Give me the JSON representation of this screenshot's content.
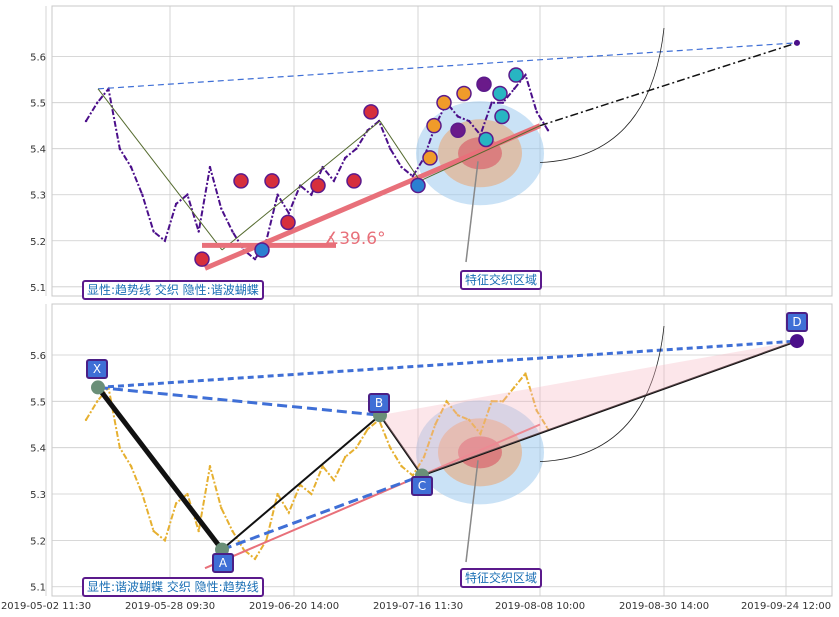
{
  "chart_data": [
    {
      "type": "line",
      "panel": "top",
      "yticks": [
        "5.1",
        "5.2",
        "5.3",
        "5.4",
        "5.5",
        "5.6"
      ],
      "ylim": [
        5.08,
        5.71
      ],
      "grid": true,
      "series": [
        {
          "values": [
            5.46,
            5.5,
            5.53,
            5.4,
            5.36,
            5.3,
            5.22,
            5.2,
            5.28,
            5.3,
            5.22,
            5.36,
            5.27,
            5.22,
            5.18,
            5.16,
            5.2,
            5.3,
            5.26,
            5.32,
            5.3,
            5.36,
            5.33,
            5.38,
            5.4,
            5.44,
            5.46,
            5.4,
            5.36,
            5.34,
            5.38,
            5.45,
            5.5,
            5.47,
            5.46,
            5.43,
            5.5,
            5.5,
            5.53,
            5.56,
            5.48,
            5.44
          ]
        }
      ],
      "annotations": {
        "angle_label": "∡39.6°",
        "zone_label": "特征交织区域",
        "badge": "显性:趋势线 交织 隐性:谐波蝴蝶"
      }
    },
    {
      "type": "line",
      "panel": "bottom",
      "yticks": [
        "5.1",
        "5.2",
        "5.3",
        "5.4",
        "5.5",
        "5.6"
      ],
      "ylim": [
        5.08,
        5.71
      ],
      "grid": true,
      "series": [
        {
          "values": [
            5.46,
            5.5,
            5.53,
            5.4,
            5.36,
            5.3,
            5.22,
            5.2,
            5.28,
            5.3,
            5.22,
            5.36,
            5.27,
            5.22,
            5.18,
            5.16,
            5.2,
            5.3,
            5.26,
            5.32,
            5.3,
            5.36,
            5.33,
            5.38,
            5.4,
            5.44,
            5.46,
            5.4,
            5.36,
            5.34,
            5.38,
            5.45,
            5.5,
            5.47,
            5.46,
            5.43,
            5.5,
            5.5,
            5.53,
            5.56,
            5.48,
            5.44
          ]
        }
      ],
      "points": [
        {
          "label": "X",
          "value": 5.53
        },
        {
          "label": "A",
          "value": 5.18
        },
        {
          "label": "B",
          "value": 5.47
        },
        {
          "label": "C",
          "value": 5.34
        },
        {
          "label": "D",
          "value": 5.63
        }
      ],
      "annotations": {
        "zone_label": "特征交织区域",
        "badge": "显性:谐波蝴蝶 交织 隐性:趋势线"
      }
    }
  ],
  "xticks": [
    "2019-05-02 11:30",
    "2019-05-28 09:30",
    "2019-06-20 14:00",
    "2019-07-16 11:30",
    "2019-08-08 10:00",
    "2019-08-30 14:00",
    "2019-09-24 12:00"
  ],
  "colors": {
    "top_series": "#4b0f8a",
    "bottom_series": "#e6b030",
    "trend_red": "#e8707a",
    "dash_blue": "#3f6fd6",
    "zone_blue": "#9fcbee",
    "zone_tan": "#e0b89a"
  }
}
